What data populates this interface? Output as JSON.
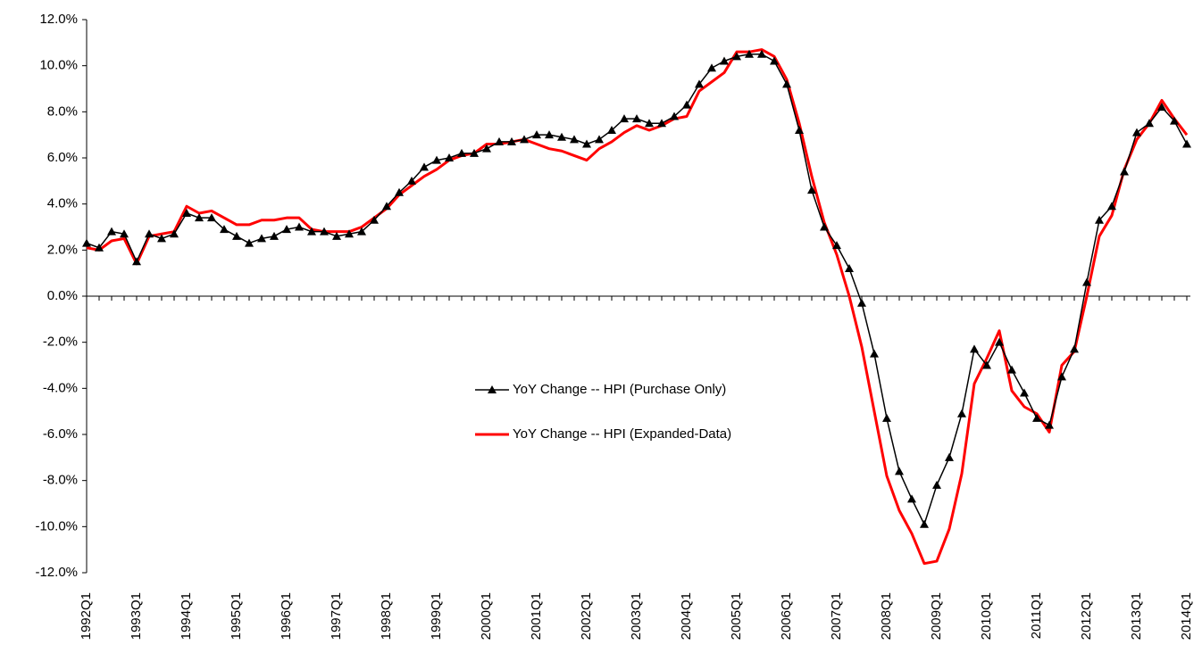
{
  "chart_data": {
    "type": "line",
    "categories": [
      "1992Q1",
      null,
      null,
      null,
      "1993Q1",
      null,
      null,
      null,
      "1994Q1",
      null,
      null,
      null,
      "1995Q1",
      null,
      null,
      null,
      "1996Q1",
      null,
      null,
      null,
      "1997Q1",
      null,
      null,
      null,
      "1998Q1",
      null,
      null,
      null,
      "1999Q1",
      null,
      null,
      null,
      "2000Q1",
      null,
      null,
      null,
      "2001Q1",
      null,
      null,
      null,
      "2002Q1",
      null,
      null,
      null,
      "2003Q1",
      null,
      null,
      null,
      "2004Q1",
      null,
      null,
      null,
      "2005Q1",
      null,
      null,
      null,
      "2006Q1",
      null,
      null,
      null,
      "2007Q1",
      null,
      null,
      null,
      "2008Q1",
      null,
      null,
      null,
      "2009Q1",
      null,
      null,
      null,
      "2010Q1",
      null,
      null,
      null,
      "2011Q1",
      null,
      null,
      null,
      "2012Q1",
      null,
      null,
      null,
      "2013Q1",
      null,
      null,
      null,
      "2014Q1"
    ],
    "series": [
      {
        "name": "YoY Change -- HPI (Purchase Only)",
        "color": "#000000",
        "marker": "triangle",
        "values": [
          2.3,
          2.1,
          2.8,
          2.7,
          1.5,
          2.7,
          2.5,
          2.7,
          3.6,
          3.4,
          3.4,
          2.9,
          2.6,
          2.3,
          2.5,
          2.6,
          2.9,
          3.0,
          2.8,
          2.8,
          2.6,
          2.7,
          2.8,
          3.3,
          3.9,
          4.5,
          5.0,
          5.6,
          5.9,
          6.0,
          6.2,
          6.2,
          6.4,
          6.7,
          6.7,
          6.8,
          7.0,
          7.0,
          6.9,
          6.8,
          6.6,
          6.8,
          7.2,
          7.7,
          7.7,
          7.5,
          7.5,
          7.8,
          8.3,
          9.2,
          9.9,
          10.2,
          10.4,
          10.5,
          10.5,
          10.2,
          9.2,
          7.2,
          4.6,
          3.0,
          2.2,
          1.2,
          -0.3,
          -2.5,
          -5.3,
          -7.6,
          -8.8,
          -9.9,
          -8.2,
          -7.0,
          -5.1,
          -2.3,
          -3.0,
          -2.0,
          -3.2,
          -4.2,
          -5.3,
          -5.6,
          -3.5,
          -2.3,
          0.6,
          3.3,
          3.9,
          5.4,
          7.1,
          7.5,
          8.2,
          7.6,
          6.6
        ]
      },
      {
        "name": "YoY Change -- HPI (Expanded-Data)",
        "color": "#ff0000",
        "values": [
          2.1,
          2.0,
          2.4,
          2.5,
          1.4,
          2.6,
          2.7,
          2.8,
          3.9,
          3.6,
          3.7,
          3.4,
          3.1,
          3.1,
          3.3,
          3.3,
          3.4,
          3.4,
          2.9,
          2.8,
          2.8,
          2.8,
          3.0,
          3.4,
          3.8,
          4.4,
          4.8,
          5.2,
          5.5,
          5.9,
          6.1,
          6.2,
          6.6,
          6.6,
          6.7,
          6.8,
          6.6,
          6.4,
          6.3,
          6.1,
          5.9,
          6.4,
          6.7,
          7.1,
          7.4,
          7.2,
          7.4,
          7.7,
          7.8,
          8.9,
          9.3,
          9.7,
          10.6,
          10.6,
          10.7,
          10.4,
          9.4,
          7.5,
          5.2,
          3.2,
          1.8,
          0.0,
          -2.2,
          -5.0,
          -7.8,
          -9.3,
          -10.3,
          -11.6,
          -11.5,
          -10.1,
          -7.7,
          -3.8,
          -2.7,
          -1.5,
          -4.1,
          -4.8,
          -5.1,
          -5.9,
          -3.0,
          -2.4,
          0.0,
          2.6,
          3.5,
          5.5,
          6.8,
          7.5,
          8.5,
          7.7,
          7.0
        ]
      }
    ],
    "ylim": [
      -12,
      12
    ],
    "yticks": [
      {
        "value": 12,
        "label": "12.0%"
      },
      {
        "value": 10,
        "label": "10.0%"
      },
      {
        "value": 8,
        "label": "8.0%"
      },
      {
        "value": 6,
        "label": "6.0%"
      },
      {
        "value": 4,
        "label": "4.0%"
      },
      {
        "value": 2,
        "label": "2.0%"
      },
      {
        "value": 0,
        "label": "0.0%"
      },
      {
        "value": -2,
        "label": "-2.0%"
      },
      {
        "value": -4,
        "label": "-4.0%"
      },
      {
        "value": -6,
        "label": "-6.0%"
      },
      {
        "value": -8,
        "label": "-8.0%"
      },
      {
        "value": -10,
        "label": "-10.0%"
      },
      {
        "value": -12,
        "label": "-12.0%"
      }
    ],
    "grid": false,
    "legend_position": "center"
  }
}
